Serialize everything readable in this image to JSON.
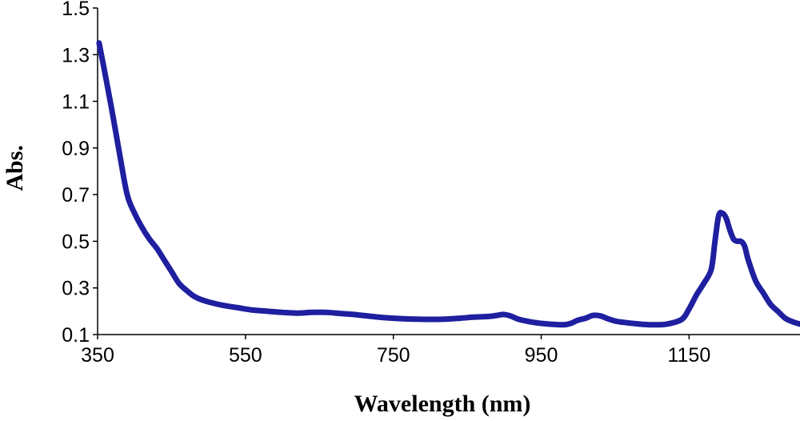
{
  "chart_data": {
    "type": "line",
    "title": "",
    "xlabel": "Wavelength (nm)",
    "ylabel": "Abs.",
    "xlim": [
      350,
      1300
    ],
    "ylim": [
      0.1,
      1.5
    ],
    "x_ticks": [
      "350",
      "550",
      "750",
      "950",
      "1150"
    ],
    "y_ticks": [
      "0.1",
      "0.3",
      "0.5",
      "0.7",
      "0.9",
      "1.1",
      "1.3",
      "1.5"
    ],
    "grid": false,
    "legend": "none",
    "line_color": "#1f1fa0",
    "series": [
      {
        "x": [
          352,
          360,
          370,
          380,
          390,
          400,
          410,
          420,
          430,
          440,
          450,
          460,
          470,
          480,
          490,
          500,
          520,
          540,
          560,
          580,
          600,
          620,
          640,
          660,
          680,
          700,
          720,
          740,
          760,
          780,
          800,
          820,
          840,
          860,
          880,
          890,
          900,
          910,
          920,
          940,
          960,
          980,
          990,
          1000,
          1010,
          1020,
          1030,
          1040,
          1050,
          1060,
          1080,
          1100,
          1120,
          1140,
          1150,
          1160,
          1170,
          1180,
          1185,
          1190,
          1195,
          1200,
          1205,
          1210,
          1215,
          1220,
          1225,
          1230,
          1240,
          1250,
          1260,
          1270,
          1280,
          1290,
          1300
        ],
        "y": [
          1.35,
          1.22,
          1.05,
          0.87,
          0.7,
          0.62,
          0.56,
          0.51,
          0.47,
          0.42,
          0.37,
          0.32,
          0.29,
          0.265,
          0.25,
          0.24,
          0.225,
          0.215,
          0.205,
          0.2,
          0.195,
          0.192,
          0.195,
          0.195,
          0.19,
          0.185,
          0.178,
          0.172,
          0.168,
          0.166,
          0.165,
          0.166,
          0.17,
          0.175,
          0.178,
          0.182,
          0.186,
          0.178,
          0.165,
          0.152,
          0.145,
          0.142,
          0.148,
          0.162,
          0.17,
          0.182,
          0.18,
          0.168,
          0.158,
          0.153,
          0.146,
          0.142,
          0.145,
          0.165,
          0.21,
          0.27,
          0.32,
          0.38,
          0.5,
          0.61,
          0.62,
          0.6,
          0.55,
          0.51,
          0.5,
          0.5,
          0.48,
          0.42,
          0.33,
          0.28,
          0.23,
          0.2,
          0.17,
          0.155,
          0.145
        ]
      }
    ]
  }
}
